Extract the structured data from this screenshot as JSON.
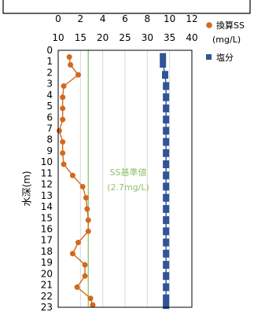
{
  "chart_data": {
    "type": "scatter",
    "ylabel": "水深(m)",
    "x_axes": {
      "ss": {
        "ticks": [
          0,
          2,
          4,
          6,
          8,
          10,
          12
        ],
        "range": [
          0,
          12
        ]
      },
      "salinity": {
        "ticks": [
          10,
          15,
          20,
          25,
          30,
          35,
          40
        ],
        "range": [
          10,
          40
        ]
      }
    },
    "ylim": [
      0,
      23
    ],
    "y_ticks": [
      0,
      1,
      2,
      3,
      4,
      5,
      6,
      7,
      8,
      9,
      10,
      11,
      12,
      13,
      14,
      15,
      16,
      17,
      18,
      19,
      20,
      21,
      22,
      23
    ],
    "grid": true,
    "series": [
      {
        "name": "換算SS",
        "unit": "(mg/L)",
        "axis": "ss",
        "marker": "circle-line",
        "color": "#d2691e",
        "depth": [
          0.6,
          1.3,
          2.2,
          3.2,
          4.2,
          5.2,
          6.2,
          7.2,
          8.2,
          9.2,
          10.2,
          11.2,
          12.2,
          13.2,
          14.2,
          15.2,
          16.2,
          17.2,
          18.2,
          19.2,
          20.2,
          21.2,
          22.2,
          22.8
        ],
        "values": [
          1.0,
          1.1,
          1.8,
          0.5,
          0.4,
          0.4,
          0.4,
          0.1,
          0.4,
          0.4,
          0.5,
          1.3,
          2.2,
          2.5,
          2.6,
          2.7,
          2.7,
          1.8,
          1.3,
          2.4,
          2.4,
          1.7,
          2.9,
          3.1
        ]
      },
      {
        "name": "塩分",
        "axis": "salinity",
        "marker": "square-line",
        "color": "#2f5597",
        "depth": [
          0.6,
          1.2,
          2.2,
          3.2,
          4.2,
          5.2,
          6.2,
          7.2,
          8.2,
          9.2,
          10.2,
          11.2,
          12.2,
          13.2,
          14.2,
          15.2,
          16.2,
          17.2,
          18.2,
          19.2,
          20.2,
          21.2,
          22.2,
          22.8
        ],
        "values": [
          33.5,
          33.5,
          34.0,
          34.2,
          34.2,
          34.2,
          34.2,
          34.2,
          34.2,
          34.2,
          34.2,
          34.2,
          34.2,
          34.2,
          34.2,
          34.2,
          34.2,
          34.2,
          34.2,
          34.2,
          34.2,
          34.2,
          34.2,
          34.2
        ]
      }
    ],
    "reference_line": {
      "label_line1": "SS基準値",
      "label_line2": "(2.7mg/L)",
      "axis": "ss",
      "value": 2.7,
      "color": "#8cc36a"
    },
    "legend": {
      "placement": "right",
      "items": [
        {
          "label_line1": "換算SS",
          "label_line2": "(mg/L)",
          "color": "#d2691e",
          "marker": "circle"
        },
        {
          "label_line1": "塩分",
          "label_line2": "",
          "color": "#2f5597",
          "marker": "square"
        }
      ]
    }
  }
}
